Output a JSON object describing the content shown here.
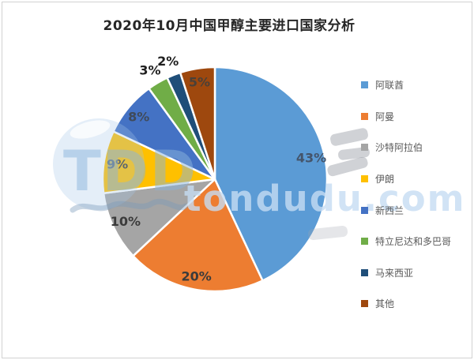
{
  "page": {
    "title": "2020年10月中国甲醇主要进口国家分析"
  },
  "watermark": {
    "logo_text": "TDD",
    "site_text": "tondudu.com"
  },
  "chart_data": {
    "type": "pie",
    "title": "2020年10月中国甲醇主要进口国家分析",
    "start_angle_deg": 0,
    "direction": "clockwise",
    "legend_position": "right",
    "total_percent": 100,
    "slices": [
      {
        "label": "阿联酋",
        "value": 43,
        "percent_label": "43%",
        "color": "#5B9BD5",
        "label_color": "#44546A",
        "label_outside": false
      },
      {
        "label": "阿曼",
        "value": 20,
        "percent_label": "20%",
        "color": "#ED7D31",
        "label_color": "#3B3B3B",
        "label_outside": false
      },
      {
        "label": "沙特阿拉伯",
        "value": 10,
        "percent_label": "10%",
        "color": "#A5A5A5",
        "label_color": "#3B3B3B",
        "label_outside": false
      },
      {
        "label": "伊朗",
        "value": 9,
        "percent_label": "9%",
        "color": "#FFC000",
        "label_color": "#3B3B3B",
        "label_outside": false
      },
      {
        "label": "新西兰",
        "value": 8,
        "percent_label": "8%",
        "color": "#4472C4",
        "label_color": "#3F4A5A",
        "label_outside": false
      },
      {
        "label": "特立尼达和多巴哥",
        "value": 3,
        "percent_label": "3%",
        "color": "#70AD47",
        "label_color": "#1F1F1F",
        "label_outside": true
      },
      {
        "label": "马来西亚",
        "value": 2,
        "percent_label": "2%",
        "color": "#1F4E79",
        "label_color": "#1F1F1F",
        "label_outside": true
      },
      {
        "label": "其他",
        "value": 5,
        "percent_label": "5%",
        "color": "#9E480E",
        "label_color": "#4A4038",
        "label_outside": false
      }
    ]
  }
}
